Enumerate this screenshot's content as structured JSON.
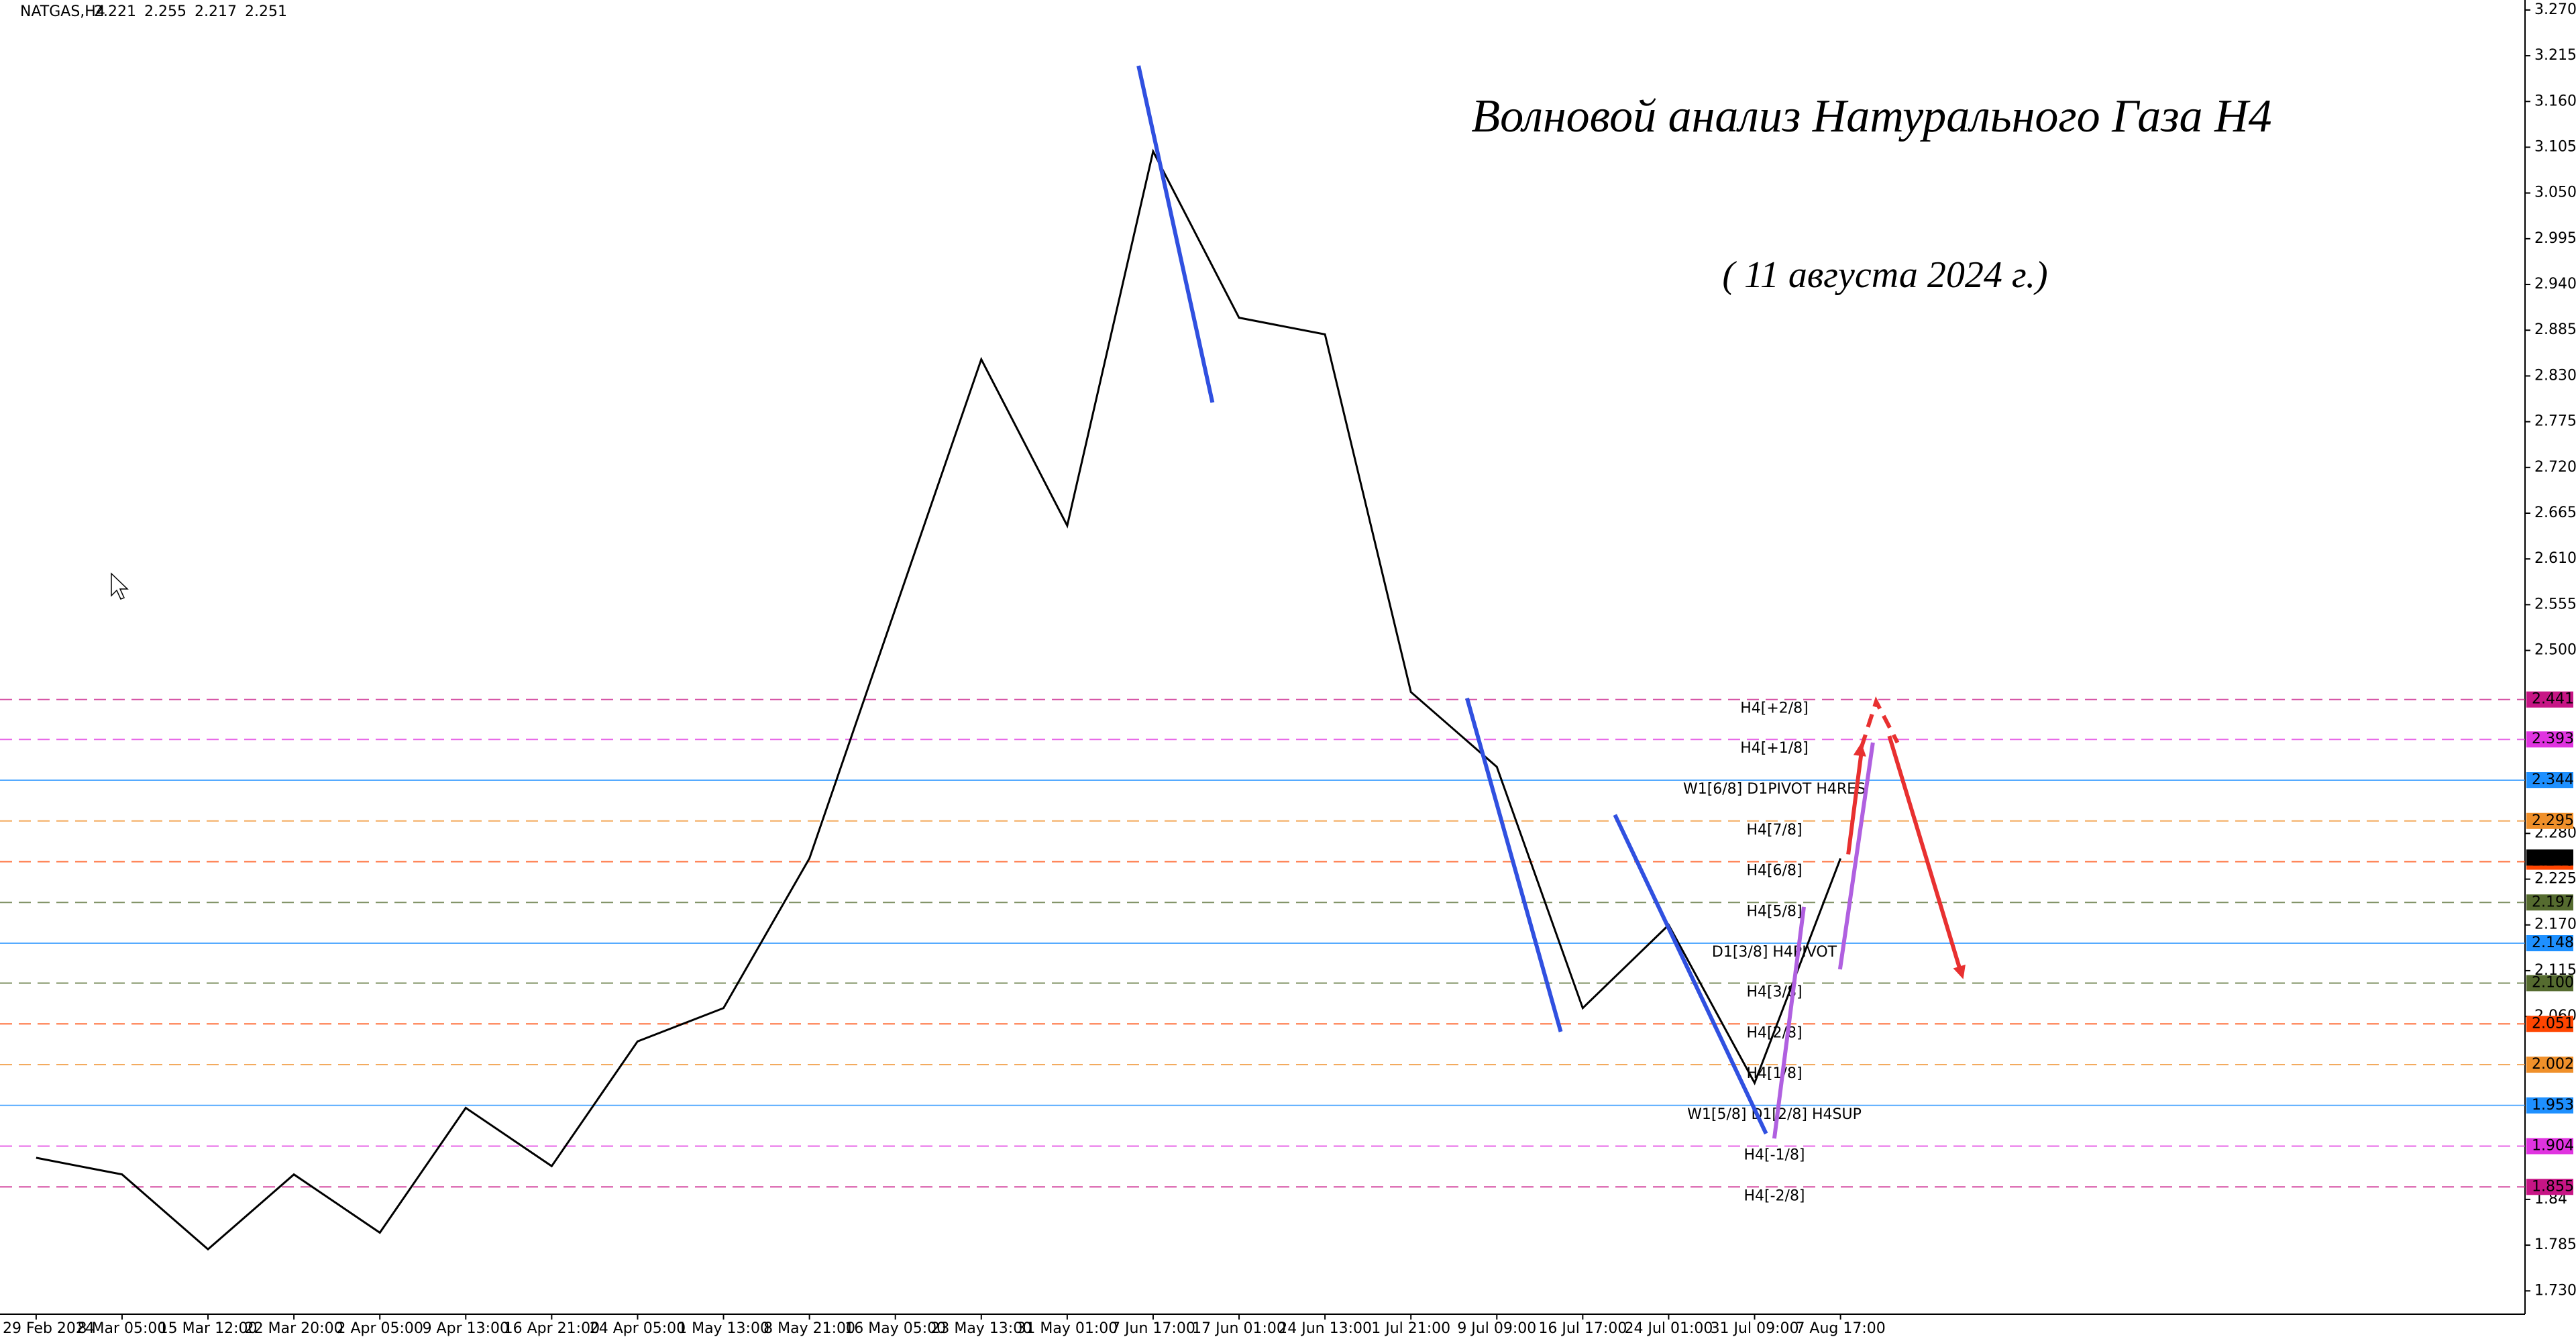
{
  "chart_data": {
    "type": "line",
    "symbol": "NATGAS,H4",
    "ohlc": [
      2.221,
      2.255,
      2.217,
      2.251
    ],
    "title": "Волновой анализ Натурального Газа Н4",
    "subtitle": "( 11 августа 2024 г.)",
    "categories": [
      "29 Feb 2024",
      "8 Mar 05:00",
      "15 Mar 12:00",
      "22 Mar 20:00",
      "2 Apr 05:00",
      "9 Apr 13:00",
      "16 Apr 21:00",
      "24 Apr 05:00",
      "1 May 13:00",
      "8 May 21:00",
      "16 May 05:00",
      "23 May 13:00",
      "31 May 01:00",
      "7 Jun 17:00",
      "17 Jun 01:00",
      "24 Jun 13:00",
      "1 Jul 21:00",
      "9 Jul 09:00",
      "16 Jul 17:00",
      "24 Jul 01:00",
      "31 Jul 09:00",
      "7 Aug 17:00"
    ],
    "series": [
      {
        "name": "NATGAS",
        "color": "#000000",
        "values": [
          1.89,
          1.87,
          1.78,
          1.87,
          1.8,
          1.95,
          1.88,
          2.03,
          2.07,
          2.25,
          2.55,
          2.85,
          2.65,
          3.1,
          2.9,
          2.88,
          2.45,
          2.36,
          2.07,
          2.17,
          1.98,
          2.25
        ]
      }
    ],
    "ylim": [
      1.702,
      3.282
    ],
    "yticks": [
      {
        "value": 1.73,
        "label": "1.730"
      },
      1.785,
      1.84,
      {
        "value": 2.06,
        "label": "2.060"
      },
      2.115,
      {
        "value": 2.17,
        "label": "2.170"
      },
      2.225,
      {
        "value": 2.28,
        "label": "2.280"
      },
      {
        "value": 2.5,
        "label": "2.500"
      },
      2.555,
      {
        "value": 2.61,
        "label": "2.610"
      },
      2.665,
      {
        "value": 2.72,
        "label": "2.720"
      },
      2.775,
      {
        "value": 2.83,
        "label": "2.830"
      },
      2.885,
      {
        "value": 2.94,
        "label": "2.940"
      },
      2.995,
      {
        "value": 3.05,
        "label": "3.050"
      },
      3.105,
      {
        "value": 3.16,
        "label": "3.160"
      },
      3.215,
      {
        "value": 3.27,
        "label": "3.270"
      }
    ],
    "levels": [
      {
        "label": "H4[+2/8]",
        "price": 2.441,
        "color": "#c71585",
        "dash": true
      },
      {
        "label": "H4[+1/8]",
        "price": 2.393,
        "color": "#e033e0",
        "dash": true
      },
      {
        "label": "W1[6/8] D1PIVOT H4RES",
        "price": 2.344,
        "color": "#1e90ff",
        "dash": false
      },
      {
        "label": "H4[7/8]",
        "price": 2.295,
        "color": "#f0902a",
        "dash": true
      },
      {
        "label": "H4[6/8]",
        "price": 2.246,
        "color": "#ff4500",
        "dash": true
      },
      {
        "label": "H4[5/8]",
        "price": 2.197,
        "color": "#556b2f",
        "dash": true
      },
      {
        "label": "D1[3/8] H4PIVOT",
        "price": 2.148,
        "color": "#1e90ff",
        "dash": false
      },
      {
        "label": "H4[3/8]",
        "price": {
          "value": 2.1,
          "label": "2.100"
        },
        "color": "#556b2f",
        "dash": true
      },
      {
        "label": "H4[2/8]",
        "price": 2.051,
        "color": "#ff4500",
        "dash": true
      },
      {
        "label": "H4[1/8]",
        "price": 2.002,
        "color": "#f0902a",
        "dash": true
      },
      {
        "label": "W1[5/8] D1[2/8] H4SUP",
        "price": 1.953,
        "color": "#1e90ff",
        "dash": false
      },
      {
        "label": "H4[-1/8]",
        "price": 1.904,
        "color": "#e033e0",
        "dash": true
      },
      {
        "label": "H4[-2/8]",
        "price": 1.855,
        "color": "#c71585",
        "dash": true
      }
    ]
  }
}
